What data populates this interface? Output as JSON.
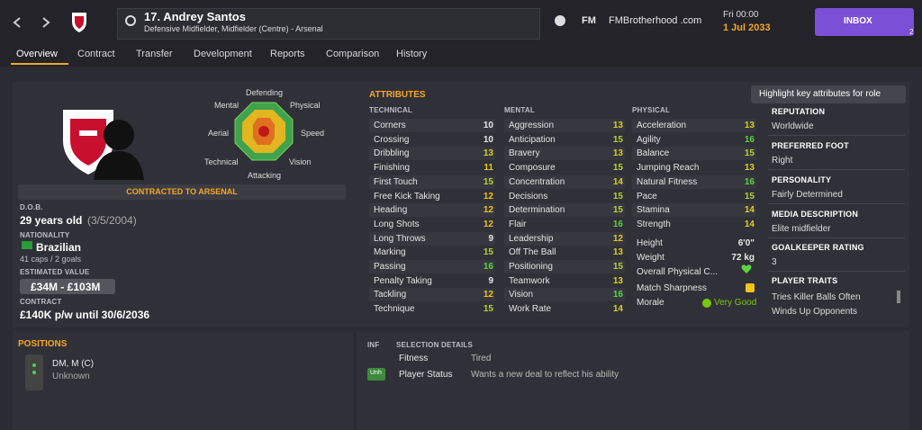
{
  "header": {
    "player_name": "17. Andrey Santos",
    "player_positions": "Defensive Midfielder, Midfielder (Centre) - Arsenal",
    "brand": "FM",
    "site": "FMBrotherhood .com",
    "time": "Fri 00:00",
    "date": "1 Jul 2033",
    "inbox": "INBOX",
    "inbox_count": 2
  },
  "tabs": [
    "Overview",
    "Contract",
    "Transfer",
    "Development",
    "Reports",
    "Comparison",
    "History"
  ],
  "radar": {
    "defending": "Defending",
    "physical": "Physical",
    "speed": "Speed",
    "vision": "Vision",
    "attacking": "Attacking",
    "technical": "Technical",
    "aerial": "Aerial",
    "mental": "Mental"
  },
  "profile": {
    "contract_banner": "CONTRACTED TO ARSENAL",
    "dob_label": "D.O.B.",
    "dob": "29 years old",
    "dob_date": "(3/5/2004)",
    "nationality_label": "NATIONALITY",
    "nationality": "Brazilian",
    "caps": "41 caps / 2 goals",
    "value_label": "ESTIMATED VALUE",
    "value": "£34M - £103M",
    "contract_label": "CONTRACT",
    "contract": "£140K p/w until 30/6/2036"
  },
  "attributes": {
    "title": "ATTRIBUTES",
    "highlight_button": "Highlight key attributes for role",
    "technical": {
      "heading": "TECHNICAL",
      "items": [
        {
          "name": "Corners",
          "value": 10
        },
        {
          "name": "Crossing",
          "value": 10
        },
        {
          "name": "Dribbling",
          "value": 13
        },
        {
          "name": "Finishing",
          "value": 11
        },
        {
          "name": "First Touch",
          "value": 15
        },
        {
          "name": "Free Kick Taking",
          "value": 12
        },
        {
          "name": "Heading",
          "value": 12
        },
        {
          "name": "Long Shots",
          "value": 12
        },
        {
          "name": "Long Throws",
          "value": 9
        },
        {
          "name": "Marking",
          "value": 15
        },
        {
          "name": "Passing",
          "value": 16
        },
        {
          "name": "Penalty Taking",
          "value": 9
        },
        {
          "name": "Tackling",
          "value": 12
        },
        {
          "name": "Technique",
          "value": 15
        }
      ]
    },
    "mental": {
      "heading": "MENTAL",
      "items": [
        {
          "name": "Aggression",
          "value": 13
        },
        {
          "name": "Anticipation",
          "value": 15
        },
        {
          "name": "Bravery",
          "value": 13
        },
        {
          "name": "Composure",
          "value": 15
        },
        {
          "name": "Concentration",
          "value": 14
        },
        {
          "name": "Decisions",
          "value": 15
        },
        {
          "name": "Determination",
          "value": 15
        },
        {
          "name": "Flair",
          "value": 16
        },
        {
          "name": "Leadership",
          "value": 12
        },
        {
          "name": "Off The Ball",
          "value": 13
        },
        {
          "name": "Positioning",
          "value": 15
        },
        {
          "name": "Teamwork",
          "value": 13
        },
        {
          "name": "Vision",
          "value": 16
        },
        {
          "name": "Work Rate",
          "value": 14
        }
      ]
    },
    "physical": {
      "heading": "PHYSICAL",
      "items": [
        {
          "name": "Acceleration",
          "value": 13
        },
        {
          "name": "Agility",
          "value": 16
        },
        {
          "name": "Balance",
          "value": 15
        },
        {
          "name": "Jumping Reach",
          "value": 13
        },
        {
          "name": "Natural Fitness",
          "value": 16
        },
        {
          "name": "Pace",
          "value": 15
        },
        {
          "name": "Stamina",
          "value": 14
        },
        {
          "name": "Strength",
          "value": 14
        }
      ]
    },
    "details": {
      "height_label": "Height",
      "height": "6'0\"",
      "weight_label": "Weight",
      "weight": "72 kg",
      "condition_label": "Overall Physical C...",
      "sharpness_label": "Match Sharpness",
      "morale_label": "Morale",
      "morale": "Very Good"
    }
  },
  "info": {
    "reputation_label": "REPUTATION",
    "reputation": "Worldwide",
    "foot_label": "PREFERRED FOOT",
    "foot": "Right",
    "personality_label": "PERSONALITY",
    "personality": "Fairly Determined",
    "media_label": "MEDIA DESCRIPTION",
    "media": "Elite midfielder",
    "gk_label": "GOALKEEPER RATING",
    "gk": 3,
    "traits_label": "PLAYER TRAITS",
    "traits": [
      "Tries Killer Balls Often",
      "Winds Up Opponents"
    ]
  },
  "positions": {
    "title": "POSITIONS",
    "roles": "DM, M (C)",
    "familiarity": "Unknown"
  },
  "selection": {
    "inf_label": "INF",
    "details_label": "SELECTION DETAILS",
    "fitness_label": "Fitness",
    "fitness": "Tired",
    "status_badge": "Unh",
    "status_label": "Player Status",
    "status": "Wants a new deal to reflect his ability"
  }
}
